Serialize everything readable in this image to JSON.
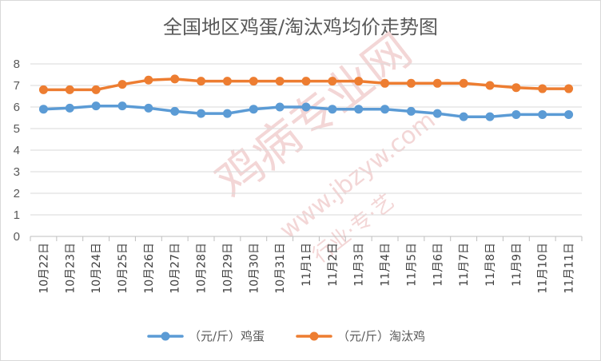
{
  "chart_data": {
    "type": "line",
    "title": "全国地区鸡蛋/淘汰鸡均价走势图",
    "categories": [
      "10月22日",
      "10月23日",
      "10月24日",
      "10月25日",
      "10月26日",
      "10月27日",
      "10月28日",
      "10月29日",
      "10月30日",
      "10月31日",
      "11月1日",
      "11月2日",
      "11月3日",
      "11月4日",
      "11月5日",
      "11月6日",
      "11月7日",
      "11月8日",
      "11月9日",
      "11月10日",
      "11月11日"
    ],
    "series": [
      {
        "name": "（元/斤）鸡蛋",
        "color": "#5b9bd5",
        "values": [
          5.9,
          5.95,
          6.05,
          6.05,
          5.95,
          5.8,
          5.7,
          5.7,
          5.9,
          6.0,
          6.0,
          5.9,
          5.9,
          5.9,
          5.8,
          5.7,
          5.55,
          5.55,
          5.65,
          5.65,
          5.65
        ]
      },
      {
        "name": "（元/斤）淘汰鸡",
        "color": "#ed7d31",
        "values": [
          6.8,
          6.8,
          6.8,
          7.05,
          7.25,
          7.3,
          7.2,
          7.2,
          7.2,
          7.2,
          7.2,
          7.2,
          7.2,
          7.1,
          7.1,
          7.1,
          7.1,
          7.0,
          6.9,
          6.85,
          6.85
        ]
      }
    ],
    "yticks": [
      "0",
      "1",
      "2",
      "3",
      "4",
      "5",
      "6",
      "7",
      "8"
    ],
    "ylim": [
      0,
      8
    ],
    "grid": true,
    "legend": "bottom",
    "watermark": {
      "brand": "鸡病专业网",
      "url": "www.jbzyw.com",
      "tagline": "行业·专·艺"
    }
  }
}
